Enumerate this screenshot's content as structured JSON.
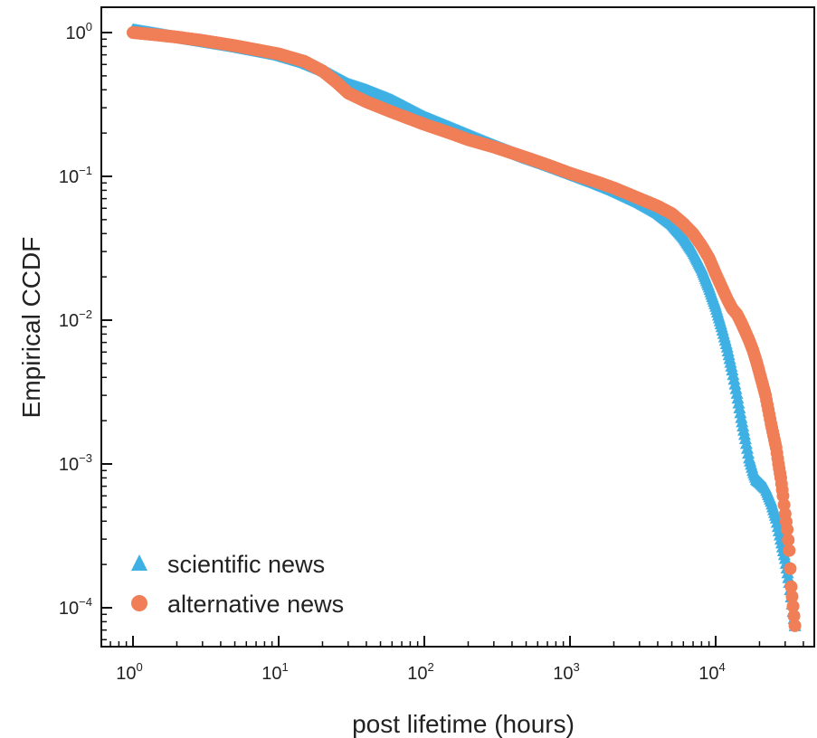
{
  "chart_data": {
    "type": "scatter",
    "xlabel": "post lifetime (hours)",
    "ylabel": "Empirical CCDF",
    "xscale": "log",
    "yscale": "log",
    "xlim": [
      0.6,
      60000
    ],
    "ylim": [
      5e-05,
      1.4
    ],
    "grid": false,
    "legend_position": "bottom-left",
    "x_ticks": [
      {
        "value": 1,
        "base": "10",
        "exp": "0"
      },
      {
        "value": 10,
        "base": "10",
        "exp": "1"
      },
      {
        "value": 100,
        "base": "10",
        "exp": "2"
      },
      {
        "value": 1000,
        "base": "10",
        "exp": "3"
      },
      {
        "value": 10000,
        "base": "10",
        "exp": "4"
      }
    ],
    "y_ticks": [
      {
        "value": 1,
        "base": "10",
        "exp": "0"
      },
      {
        "value": 0.1,
        "base": "10",
        "exp": "−1"
      },
      {
        "value": 0.01,
        "base": "10",
        "exp": "−2"
      },
      {
        "value": 0.001,
        "base": "10",
        "exp": "−3"
      },
      {
        "value": 0.0001,
        "base": "10",
        "exp": "−4"
      }
    ],
    "series": [
      {
        "name": "scientific news",
        "marker": "triangle",
        "color": "#3FB0E4",
        "x": [
          1,
          1.5,
          2,
          3,
          5,
          7,
          10,
          15,
          20,
          30,
          40,
          60,
          100,
          150,
          200,
          300,
          500,
          700,
          1000,
          1500,
          2000,
          3000,
          4000,
          5000,
          6000,
          7000,
          8000,
          9000,
          10000,
          11000,
          12000,
          13000,
          14000,
          15000,
          16000,
          17000,
          18000,
          19000,
          20000,
          22000,
          24000,
          26000,
          28000,
          30000,
          32000,
          35000
        ],
        "y": [
          1.05,
          0.98,
          0.93,
          0.87,
          0.8,
          0.75,
          0.7,
          0.62,
          0.55,
          0.44,
          0.4,
          0.34,
          0.26,
          0.22,
          0.195,
          0.165,
          0.135,
          0.12,
          0.105,
          0.09,
          0.08,
          0.066,
          0.056,
          0.047,
          0.038,
          0.03,
          0.023,
          0.017,
          0.0125,
          0.009,
          0.0065,
          0.0045,
          0.0031,
          0.0021,
          0.0015,
          0.0011,
          0.0009,
          0.00078,
          0.00075,
          0.00068,
          0.00055,
          0.00042,
          0.0003,
          0.00022,
          0.00015,
          7.5e-05
        ]
      },
      {
        "name": "alternative news",
        "marker": "circle",
        "color": "#F07E57",
        "x": [
          1,
          1.5,
          2,
          3,
          5,
          7,
          10,
          15,
          20,
          25,
          30,
          40,
          60,
          100,
          150,
          200,
          300,
          500,
          700,
          1000,
          1500,
          2000,
          3000,
          4000,
          5000,
          6000,
          7000,
          8000,
          9000,
          10000,
          11000,
          12000,
          13000,
          14000,
          15000,
          16000,
          17000,
          18000,
          19000,
          20000,
          22000,
          24000,
          26000,
          27000,
          28000,
          29000,
          30000,
          31000,
          32000,
          33000,
          35000
        ],
        "y": [
          1.0,
          0.96,
          0.93,
          0.88,
          0.81,
          0.76,
          0.71,
          0.63,
          0.54,
          0.45,
          0.38,
          0.33,
          0.28,
          0.23,
          0.2,
          0.18,
          0.16,
          0.135,
          0.12,
          0.105,
          0.092,
          0.083,
          0.07,
          0.062,
          0.055,
          0.047,
          0.04,
          0.033,
          0.027,
          0.021,
          0.017,
          0.014,
          0.012,
          0.011,
          0.0096,
          0.0083,
          0.0072,
          0.0062,
          0.0052,
          0.0043,
          0.003,
          0.0019,
          0.0013,
          0.001,
          0.0008,
          0.0006,
          0.00045,
          0.00035,
          0.00025,
          0.00014,
          7.5e-05
        ]
      }
    ]
  }
}
